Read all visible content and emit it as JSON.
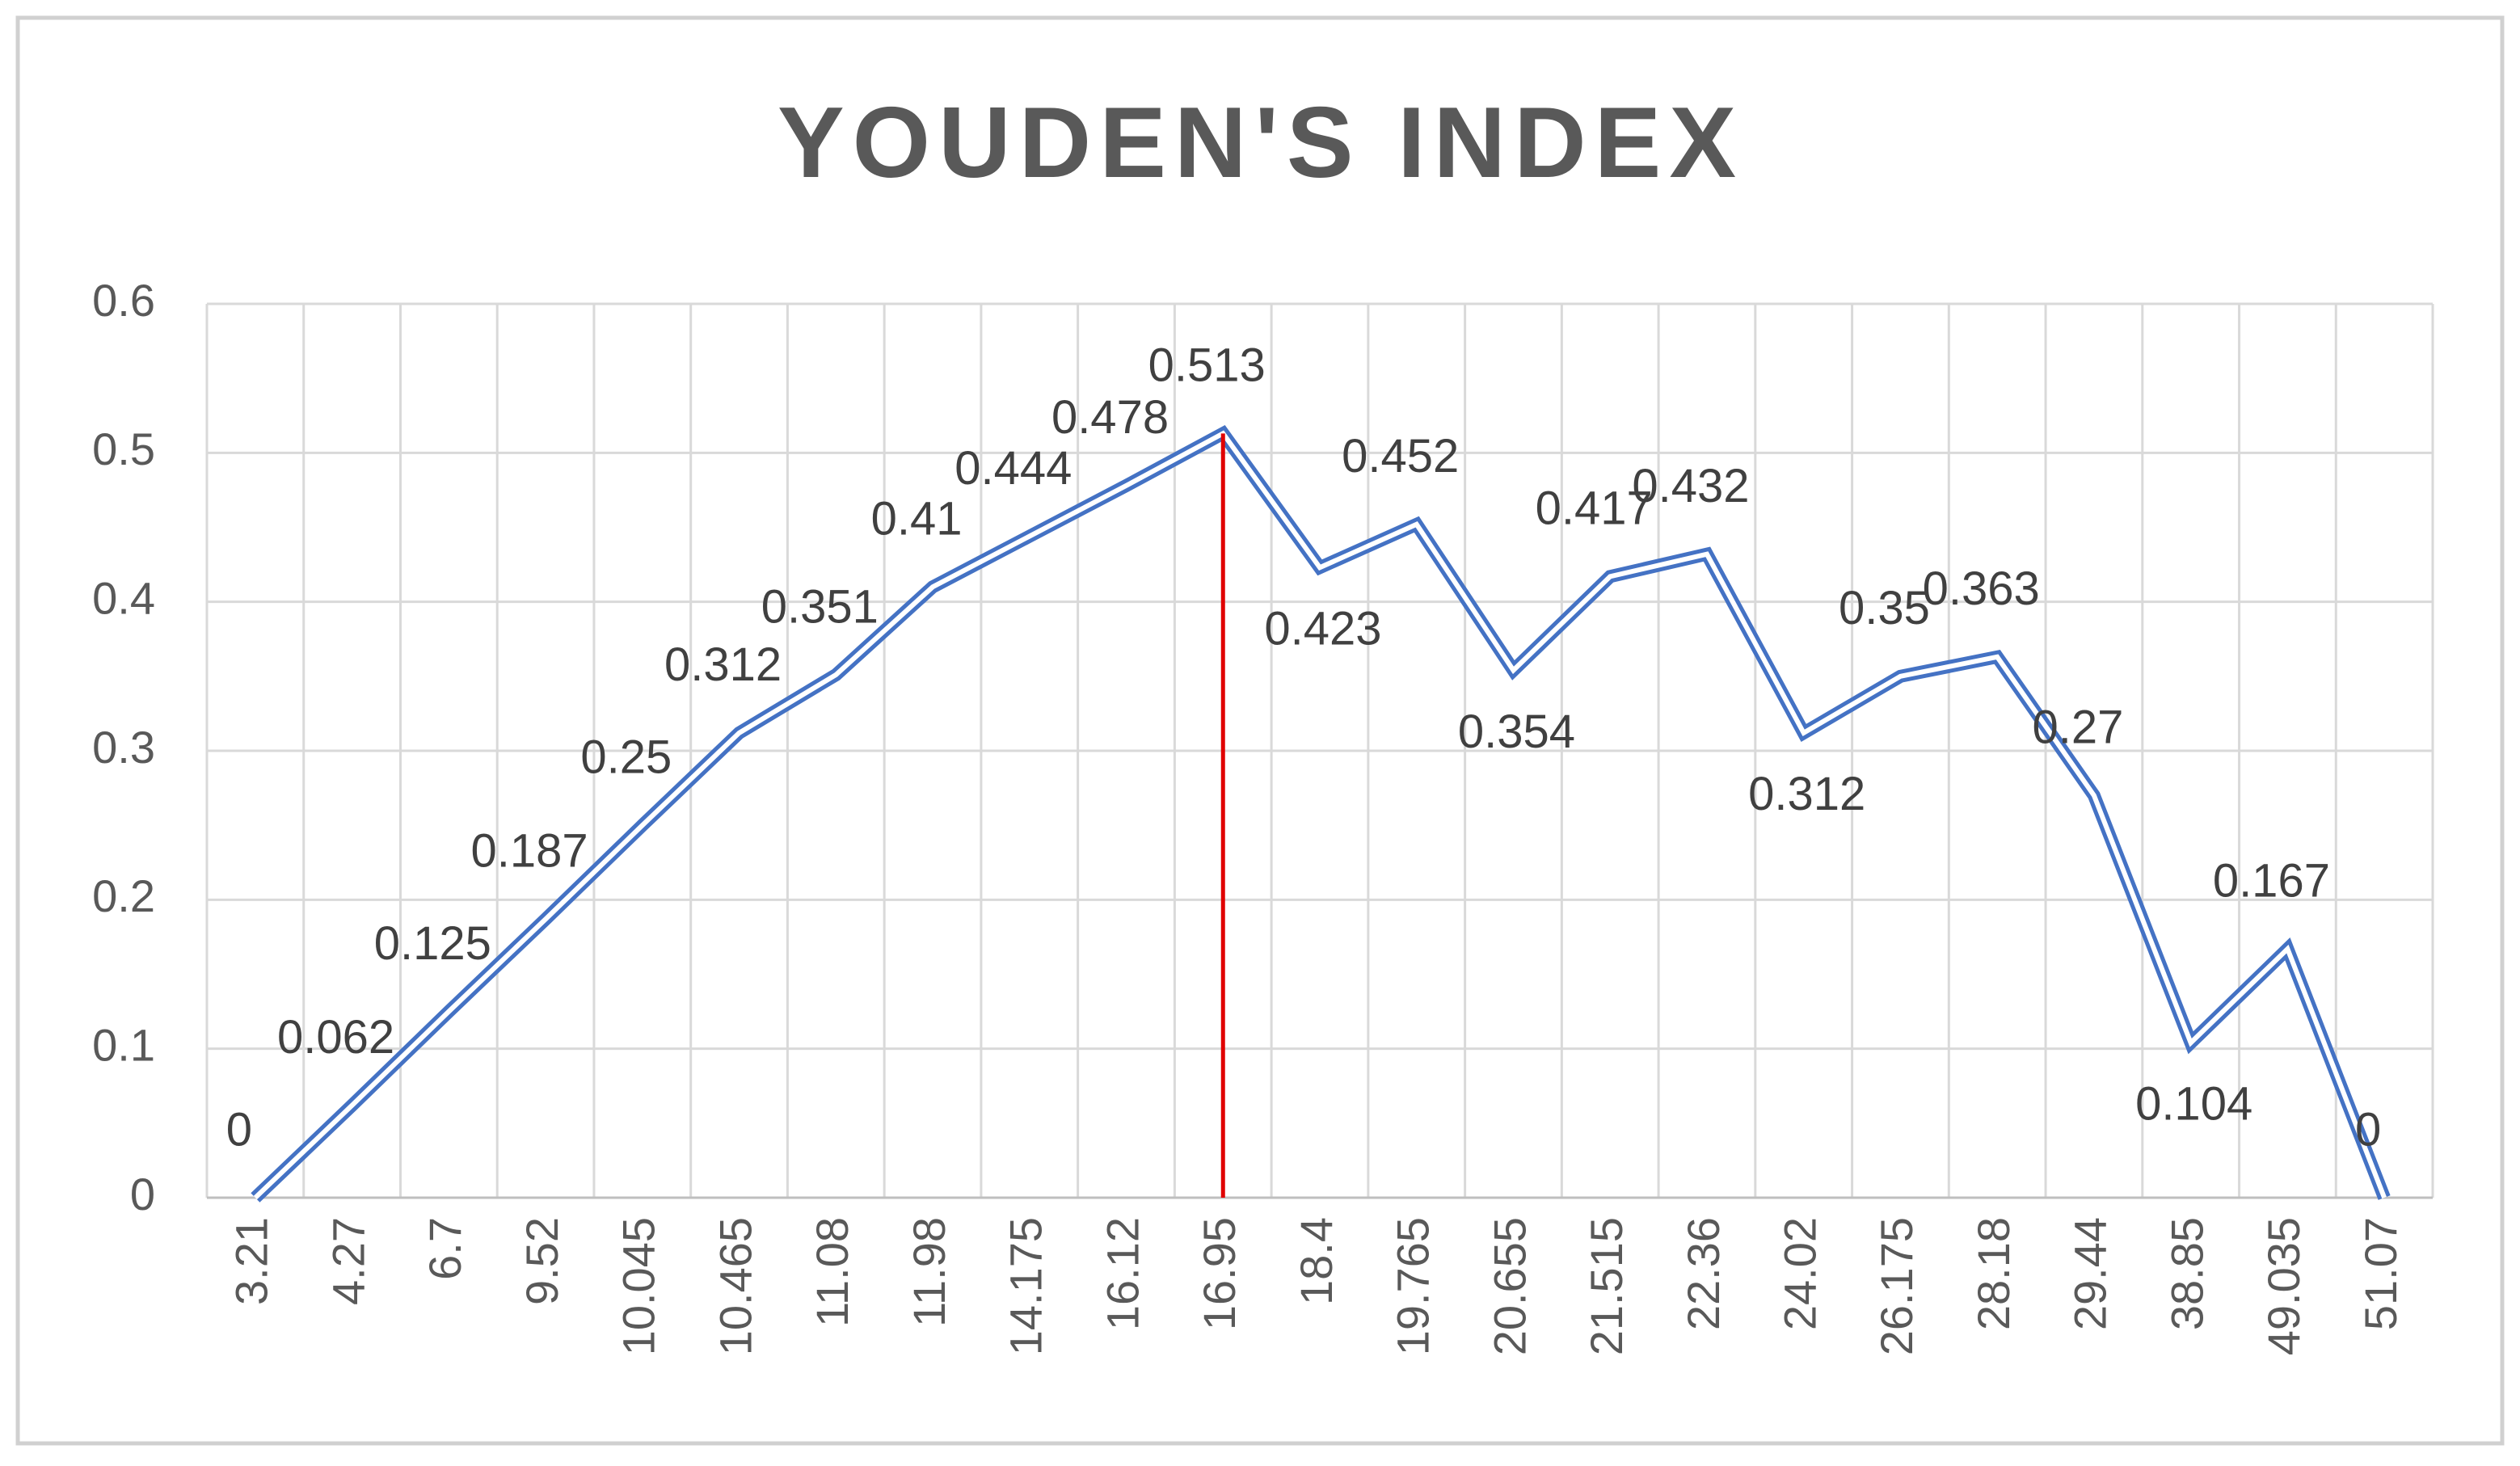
{
  "chart_data": {
    "type": "line",
    "title": "YOUDEN'S INDEX",
    "categories": [
      "3.21",
      "4.27",
      "6.7",
      "9.52",
      "10.045",
      "10.465",
      "11.08",
      "11.98",
      "14.175",
      "16.12",
      "16.95",
      "18.4",
      "19.765",
      "20.655",
      "21.515",
      "22.36",
      "24.02",
      "26.175",
      "28.18",
      "29.44",
      "38.85",
      "49.035",
      "51.07"
    ],
    "values": [
      0,
      0.062,
      0.125,
      0.187,
      0.25,
      0.312,
      0.351,
      0.41,
      0.444,
      0.478,
      0.513,
      0.423,
      0.452,
      0.354,
      0.417,
      0.432,
      0.312,
      0.35,
      0.363,
      0.27,
      0.104,
      0.167,
      0
    ],
    "color": "#4472c4",
    "highlight_color": "#e00000",
    "ylim": [
      0,
      0.6
    ],
    "yticks": [
      0,
      0.1,
      0.2,
      0.3,
      0.4,
      0.5,
      0.6
    ],
    "grid": true
  }
}
